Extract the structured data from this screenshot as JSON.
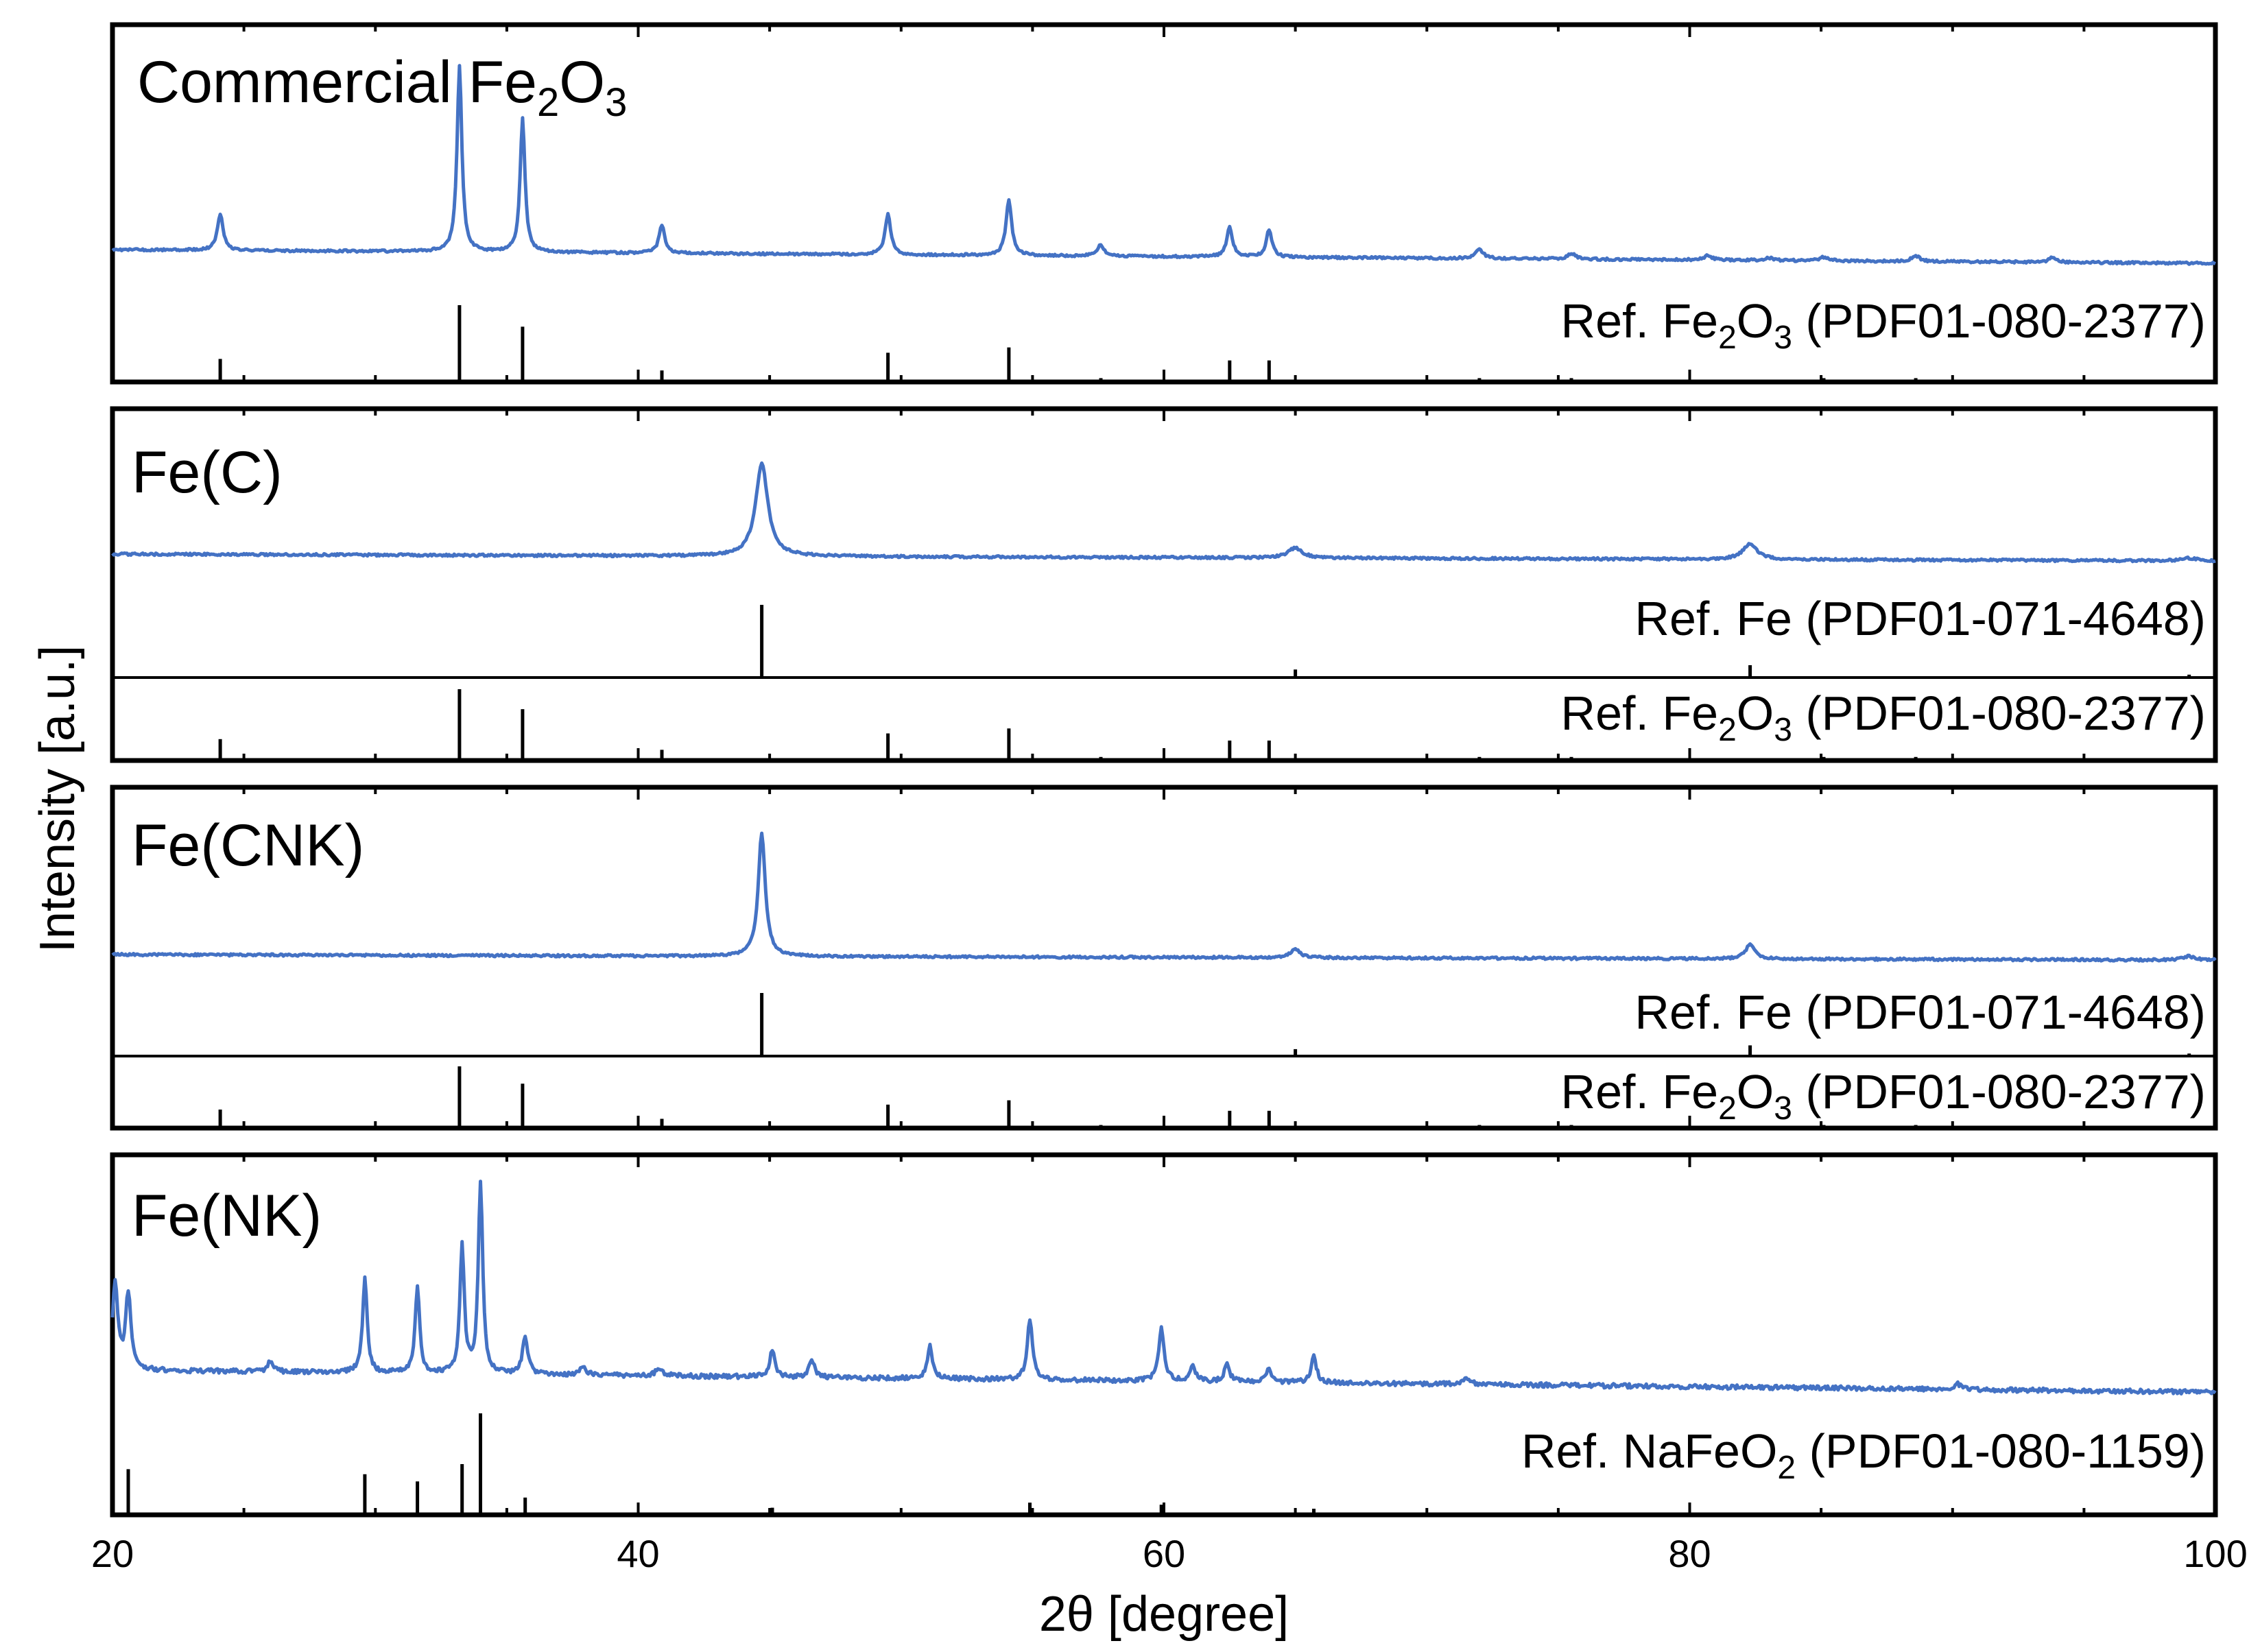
{
  "chart_data": {
    "type": "line",
    "title": "",
    "xlabel": "2θ [degree]",
    "ylabel": "Intensity [a.u.]",
    "xlim": [
      20,
      100
    ],
    "x_ticks": [
      20,
      40,
      60,
      80,
      100
    ],
    "x_tick_labels": [
      "20",
      "40",
      "60",
      "80",
      "100"
    ],
    "line_color": "#4472C4",
    "reference_color": "#000000",
    "panels": [
      {
        "id": "commercial",
        "sample": {
          "prefix": "Commercial Fe",
          "sub1": "2",
          "mid": "O",
          "sub2": "3",
          "suffix": ""
        },
        "baseline": {
          "start": 1.0,
          "end": 0.0
        },
        "peaks": [
          {
            "x": 24.1,
            "h": 20,
            "w": 0.13
          },
          {
            "x": 33.2,
            "h": 100,
            "w": 0.11
          },
          {
            "x": 35.6,
            "h": 72,
            "w": 0.11
          },
          {
            "x": 40.9,
            "h": 15,
            "w": 0.13
          },
          {
            "x": 49.5,
            "h": 22,
            "w": 0.13
          },
          {
            "x": 54.1,
            "h": 30,
            "w": 0.13
          },
          {
            "x": 57.6,
            "h": 6,
            "w": 0.15
          },
          {
            "x": 62.5,
            "h": 16,
            "w": 0.13
          },
          {
            "x": 64.0,
            "h": 15,
            "w": 0.13
          },
          {
            "x": 72.0,
            "h": 5,
            "w": 0.18
          },
          {
            "x": 75.5,
            "h": 3,
            "w": 0.18
          },
          {
            "x": 80.7,
            "h": 2.5,
            "w": 0.18
          },
          {
            "x": 83.0,
            "h": 1.5,
            "w": 0.18
          },
          {
            "x": 85.1,
            "h": 2,
            "w": 0.18
          },
          {
            "x": 88.6,
            "h": 3,
            "w": 0.18
          },
          {
            "x": 93.8,
            "h": 2.5,
            "w": 0.18
          }
        ],
        "references": [
          {
            "label": {
              "prefix": "Ref. Fe",
              "sub1": "2",
              "mid": "O",
              "sub2": "3",
              "suffix": " (PDF01-080-2377)"
            },
            "lines": [
              {
                "x": 24.1,
                "h": 30
              },
              {
                "x": 33.2,
                "h": 100
              },
              {
                "x": 35.6,
                "h": 72
              },
              {
                "x": 40.9,
                "h": 15
              },
              {
                "x": 49.5,
                "h": 38
              },
              {
                "x": 54.1,
                "h": 45
              },
              {
                "x": 57.6,
                "h": 5
              },
              {
                "x": 62.5,
                "h": 28
              },
              {
                "x": 64.0,
                "h": 28
              },
              {
                "x": 72.0,
                "h": 5
              },
              {
                "x": 75.5,
                "h": 5
              },
              {
                "x": 80.7,
                "h": 3
              },
              {
                "x": 83.0,
                "h": 3
              },
              {
                "x": 85.1,
                "h": 5
              },
              {
                "x": 88.6,
                "h": 5
              },
              {
                "x": 93.8,
                "h": 3
              }
            ]
          }
        ]
      },
      {
        "id": "fe-c",
        "sample": {
          "prefix": "Fe(C)",
          "sub1": "",
          "mid": "",
          "sub2": "",
          "suffix": ""
        },
        "baseline": {
          "start": 0.8,
          "end": 0.0
        },
        "peaks": [
          {
            "x": 44.7,
            "h": 100,
            "w": 0.28
          },
          {
            "x": 65.0,
            "h": 11,
            "w": 0.32
          },
          {
            "x": 82.3,
            "h": 17,
            "w": 0.32
          },
          {
            "x": 99.0,
            "h": 3,
            "w": 0.35
          }
        ],
        "references": [
          {
            "label": {
              "prefix": "Ref. Fe (PDF01-071-4648)",
              "sub1": "",
              "mid": "",
              "sub2": "",
              "suffix": ""
            },
            "lines": [
              {
                "x": 44.7,
                "h": 100
              },
              {
                "x": 65.0,
                "h": 11
              },
              {
                "x": 82.3,
                "h": 17
              },
              {
                "x": 99.0,
                "h": 4
              }
            ]
          },
          {
            "label": {
              "prefix": "Ref. Fe",
              "sub1": "2",
              "mid": "O",
              "sub2": "3",
              "suffix": " (PDF01-080-2377)"
            },
            "lines": [
              {
                "x": 24.1,
                "h": 30
              },
              {
                "x": 33.2,
                "h": 100
              },
              {
                "x": 35.6,
                "h": 72
              },
              {
                "x": 40.9,
                "h": 15
              },
              {
                "x": 49.5,
                "h": 38
              },
              {
                "x": 54.1,
                "h": 45
              },
              {
                "x": 57.6,
                "h": 5
              },
              {
                "x": 62.5,
                "h": 28
              },
              {
                "x": 64.0,
                "h": 28
              },
              {
                "x": 72.0,
                "h": 5
              },
              {
                "x": 75.5,
                "h": 5
              },
              {
                "x": 80.7,
                "h": 3
              },
              {
                "x": 83.0,
                "h": 3
              },
              {
                "x": 85.1,
                "h": 5
              },
              {
                "x": 88.6,
                "h": 5
              },
              {
                "x": 93.8,
                "h": 3
              }
            ]
          }
        ]
      },
      {
        "id": "fe-cnk",
        "sample": {
          "prefix": "Fe(CNK)",
          "sub1": "",
          "mid": "",
          "sub2": "",
          "suffix": ""
        },
        "baseline": {
          "start": 0.5,
          "end": 0.0
        },
        "peaks": [
          {
            "x": 44.7,
            "h": 100,
            "w": 0.16
          },
          {
            "x": 65.0,
            "h": 7,
            "w": 0.22
          },
          {
            "x": 82.3,
            "h": 12,
            "w": 0.2
          },
          {
            "x": 99.0,
            "h": 3,
            "w": 0.25
          }
        ],
        "references": [
          {
            "label": {
              "prefix": "Ref. Fe (PDF01-071-4648)",
              "sub1": "",
              "mid": "",
              "sub2": "",
              "suffix": ""
            },
            "lines": [
              {
                "x": 44.7,
                "h": 100
              },
              {
                "x": 65.0,
                "h": 11
              },
              {
                "x": 82.3,
                "h": 17
              },
              {
                "x": 99.0,
                "h": 4
              }
            ]
          },
          {
            "label": {
              "prefix": "Ref. Fe",
              "sub1": "2",
              "mid": "O",
              "sub2": "3",
              "suffix": " (PDF01-080-2377)"
            },
            "lines": [
              {
                "x": 24.1,
                "h": 30
              },
              {
                "x": 33.2,
                "h": 100
              },
              {
                "x": 35.6,
                "h": 72
              },
              {
                "x": 40.9,
                "h": 15
              },
              {
                "x": 49.5,
                "h": 38
              },
              {
                "x": 54.1,
                "h": 45
              },
              {
                "x": 57.6,
                "h": 5
              },
              {
                "x": 62.5,
                "h": 28
              },
              {
                "x": 64.0,
                "h": 28
              },
              {
                "x": 72.0,
                "h": 5
              },
              {
                "x": 75.5,
                "h": 5
              },
              {
                "x": 80.7,
                "h": 3
              },
              {
                "x": 83.0,
                "h": 3
              },
              {
                "x": 85.1,
                "h": 5
              },
              {
                "x": 88.6,
                "h": 5
              },
              {
                "x": 93.8,
                "h": 3
              }
            ]
          }
        ]
      },
      {
        "id": "fe-nk",
        "sample": {
          "prefix": "Fe(NK)",
          "sub1": "",
          "mid": "",
          "sub2": "",
          "suffix": ""
        },
        "baseline": {
          "start": 2.0,
          "end": 0.0
        },
        "peaks": [
          {
            "x": 20.1,
            "h": 45,
            "w": 0.12
          },
          {
            "x": 20.6,
            "h": 40,
            "w": 0.12
          },
          {
            "x": 26.0,
            "h": 6,
            "w": 0.12
          },
          {
            "x": 29.6,
            "h": 50,
            "w": 0.1
          },
          {
            "x": 31.6,
            "h": 45,
            "w": 0.1
          },
          {
            "x": 33.3,
            "h": 66,
            "w": 0.1
          },
          {
            "x": 34.0,
            "h": 100,
            "w": 0.1
          },
          {
            "x": 35.7,
            "h": 20,
            "w": 0.12
          },
          {
            "x": 37.9,
            "h": 5,
            "w": 0.12
          },
          {
            "x": 40.8,
            "h": 4,
            "w": 0.15
          },
          {
            "x": 45.1,
            "h": 14,
            "w": 0.12
          },
          {
            "x": 46.6,
            "h": 10,
            "w": 0.12
          },
          {
            "x": 51.1,
            "h": 17,
            "w": 0.12
          },
          {
            "x": 54.9,
            "h": 31,
            "w": 0.12
          },
          {
            "x": 59.9,
            "h": 28,
            "w": 0.12
          },
          {
            "x": 61.1,
            "h": 8,
            "w": 0.12
          },
          {
            "x": 62.4,
            "h": 9,
            "w": 0.12
          },
          {
            "x": 64.0,
            "h": 7,
            "w": 0.12
          },
          {
            "x": 65.7,
            "h": 14,
            "w": 0.12
          },
          {
            "x": 71.5,
            "h": 4,
            "w": 0.15
          },
          {
            "x": 90.2,
            "h": 3,
            "w": 0.15
          }
        ],
        "references": [
          {
            "label": {
              "prefix": "Ref. NaFeO",
              "sub1": "2",
              "mid": "",
              "sub2": "",
              "suffix": " (PDF01-080-1159)"
            },
            "lines": [
              {
                "x": 20.6,
                "h": 45
              },
              {
                "x": 29.6,
                "h": 40
              },
              {
                "x": 31.6,
                "h": 33
              },
              {
                "x": 33.3,
                "h": 50
              },
              {
                "x": 34.0,
                "h": 100
              },
              {
                "x": 35.7,
                "h": 17
              },
              {
                "x": 45.1,
                "h": 7
              },
              {
                "x": 54.9,
                "h": 12
              },
              {
                "x": 59.9,
                "h": 10
              },
              {
                "x": 65.7,
                "h": 6
              }
            ]
          }
        ]
      }
    ]
  }
}
